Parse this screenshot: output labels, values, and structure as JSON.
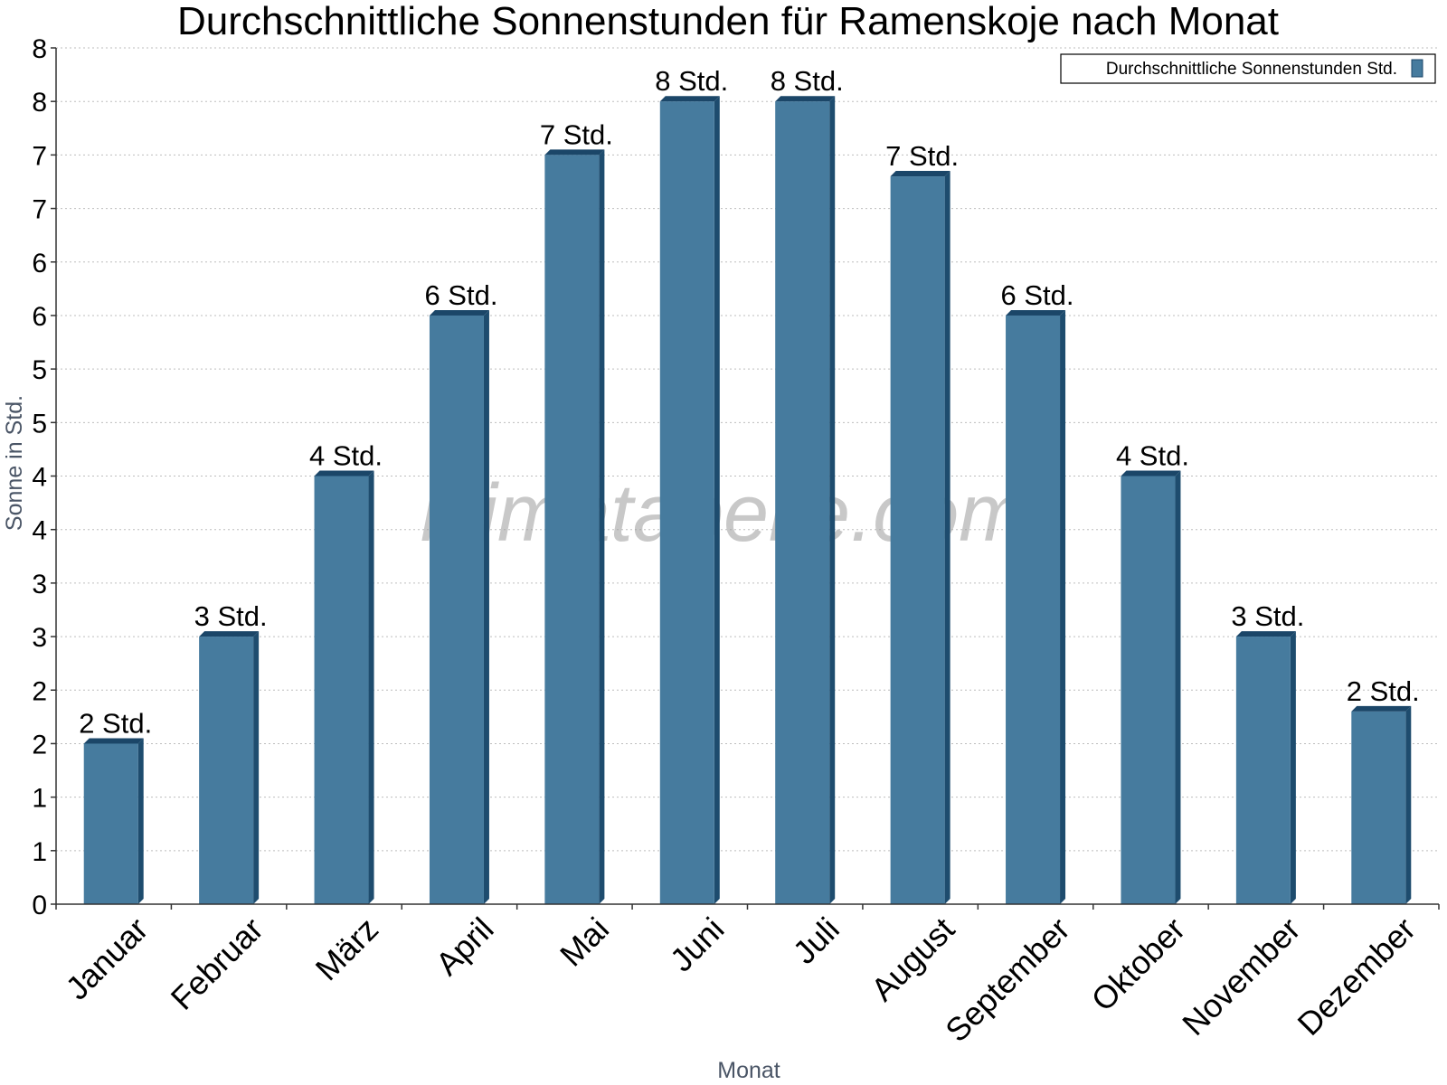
{
  "chart_data": {
    "type": "bar",
    "title": "Durchschnittliche Sonnenstunden für Ramenskoje nach Monat",
    "xlabel": "Monat",
    "ylabel": "Sonne in Std.",
    "ylim": [
      0,
      8
    ],
    "y_ticks": [
      0,
      0.5,
      1,
      1.5,
      2,
      2.5,
      3,
      3.5,
      4,
      4.5,
      5,
      5.5,
      6,
      6.5,
      7,
      7.5,
      8
    ],
    "y_tick_labels": [
      "0",
      "1",
      "1",
      "2",
      "2",
      "3",
      "3",
      "4",
      "4",
      "5",
      "5",
      "6",
      "6",
      "7",
      "7",
      "8",
      "8"
    ],
    "grid": true,
    "legend_position": "top-right",
    "categories": [
      "Januar",
      "Februar",
      "März",
      "April",
      "Mai",
      "Juni",
      "Juli",
      "August",
      "September",
      "Oktober",
      "November",
      "Dezember"
    ],
    "series": [
      {
        "name": "Durchschnittliche Sonnenstunden Std.",
        "color": "#467b9e",
        "values": [
          1.5,
          2.5,
          4.0,
          5.5,
          7.0,
          7.5,
          7.5,
          6.8,
          5.5,
          4.0,
          2.5,
          1.8
        ],
        "data_labels": [
          "2 Std.",
          "3 Std.",
          "4 Std.",
          "6 Std.",
          "7 Std.",
          "8 Std.",
          "8 Std.",
          "7 Std.",
          "6 Std.",
          "4 Std.",
          "3 Std.",
          "2 Std."
        ]
      }
    ]
  },
  "watermark": "klimatabelle.com"
}
